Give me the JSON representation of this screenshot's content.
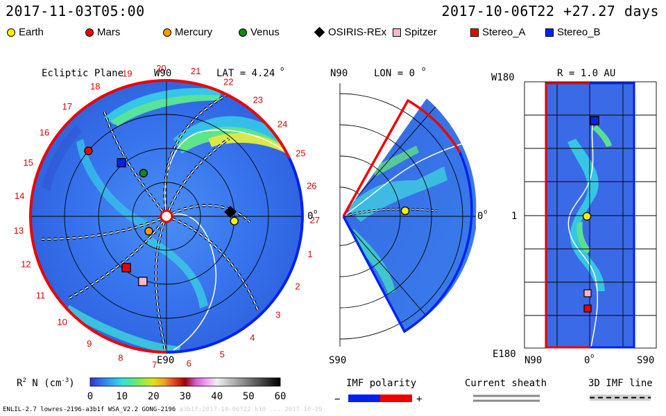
{
  "header": {
    "left_date": "2017-11-03T05:00",
    "right_date": "2017-10-06T22 +27.27 days"
  },
  "legend": [
    {
      "label": "Earth",
      "shape": "circle",
      "color": "#ffee00"
    },
    {
      "label": "Mars",
      "shape": "circle",
      "color": "#ee0000"
    },
    {
      "label": "Mercury",
      "shape": "circle",
      "color": "#ff9900"
    },
    {
      "label": "Venus",
      "shape": "circle",
      "color": "#118811"
    },
    {
      "label": "OSIRIS-REx",
      "shape": "diamond",
      "color": "#000000"
    },
    {
      "label": "Spitzer",
      "shape": "square",
      "color": "#ffb6c8"
    },
    {
      "label": "Stereo_A",
      "shape": "square",
      "color": "#ee0000"
    },
    {
      "label": "Stereo_B",
      "shape": "square",
      "color": "#0022ee"
    }
  ],
  "ecliptic": {
    "title": "Ecliptic Plane",
    "top_label": "W90",
    "bottom_label": "E90",
    "right_label": "0",
    "lat_label": "LAT = 4.24",
    "degree_mark": "o",
    "carrington_ticks": [
      "20",
      "21",
      "22",
      "23",
      "24",
      "25",
      "26",
      "27",
      "1",
      "2",
      "3",
      "4",
      "5",
      "6",
      "7",
      "8",
      "9",
      "10",
      "11",
      "12",
      "13",
      "14",
      "15",
      "16",
      "17",
      "18",
      "19"
    ]
  },
  "meridional": {
    "top_label": "N90",
    "bottom_label": "S90",
    "right_label": "0",
    "lon_label": "LON = 0",
    "degree_mark": "o"
  },
  "latlon": {
    "top_label": "W180",
    "bottom_label": "E180",
    "mid_label": "1",
    "r_label": "R = 1.0 AU",
    "x_labels": [
      "N90",
      "0",
      "S90"
    ],
    "degree_mark": "o"
  },
  "colorbar": {
    "label": "R",
    "label_sup": "2",
    "label_rest": " N (cm",
    "label_sup2": "-3",
    "label_end": ")",
    "ticks": [
      "0",
      "10",
      "20",
      "30",
      "40",
      "50",
      "60"
    ],
    "range": [
      0,
      60
    ],
    "colors": [
      "#3030d8",
      "#3070f0",
      "#30a8f0",
      "#30e0e0",
      "#50e890",
      "#90ee40",
      "#e0e020",
      "#f0a020",
      "#e04020",
      "#a00000",
      "#d060d0",
      "#f0a0f0",
      "#f0f0f0",
      "#c8c8c8",
      "#a0a0a0",
      "#787878",
      "#505050",
      "#282828",
      "#000000"
    ]
  },
  "imf_polarity": {
    "title": "IMF polarity",
    "minus": "−",
    "plus": "+",
    "neg_color": "#0022ee",
    "pos_color": "#ee0000"
  },
  "current_sheath": {
    "title": "Current sheath"
  },
  "imf_line": {
    "title": "3D IMF line"
  },
  "footer": {
    "text": "ENLIL-2.7 lowres-2196-a3b1f WSA_V2.2 GONG-2196",
    "faint": "a3b1f:2017-10-06T22 k10 ... 2017-10-29"
  },
  "chart_data": [
    {
      "type": "heatmap",
      "title": "Ecliptic Plane",
      "description_units": "R^2 N (cm^-3)",
      "color_range": [
        0,
        60
      ],
      "objects": [
        {
          "name": "Earth",
          "r_au": 1.0,
          "lon_deg": -4
        },
        {
          "name": "Mars",
          "r_au": 1.5,
          "lon_deg": 140
        },
        {
          "name": "Mercury",
          "r_au": 0.34,
          "lon_deg": -140
        },
        {
          "name": "Venus",
          "r_au": 0.72,
          "lon_deg": 118
        },
        {
          "name": "OSIRIS-REx",
          "r_au": 0.94,
          "lon_deg": 4
        },
        {
          "name": "Spitzer",
          "r_au": 1.02,
          "lon_deg": -110
        },
        {
          "name": "Stereo_A",
          "r_au": 0.96,
          "lon_deg": -128
        },
        {
          "name": "Stereo_B",
          "r_au": 1.03,
          "lon_deg": 130
        }
      ]
    },
    {
      "type": "heatmap",
      "title": "LON = 0",
      "objects": [
        {
          "name": "Earth",
          "r_au": 1.0,
          "lat_deg": 0
        }
      ]
    },
    {
      "type": "heatmap",
      "title": "R = 1.0 AU",
      "x_axis": [
        "N90",
        "0",
        "S90"
      ],
      "y_axis": [
        "W180",
        "1",
        "E180"
      ],
      "objects": [
        {
          "name": "Stereo_B",
          "lat_deg": -2,
          "lon_deg": 130
        },
        {
          "name": "Earth",
          "lat_deg": -1,
          "lon_deg": 0
        },
        {
          "name": "Spitzer",
          "lat_deg": -1,
          "lon_deg": -110
        },
        {
          "name": "Stereo_A",
          "lat_deg": -1,
          "lon_deg": -128
        }
      ]
    }
  ]
}
